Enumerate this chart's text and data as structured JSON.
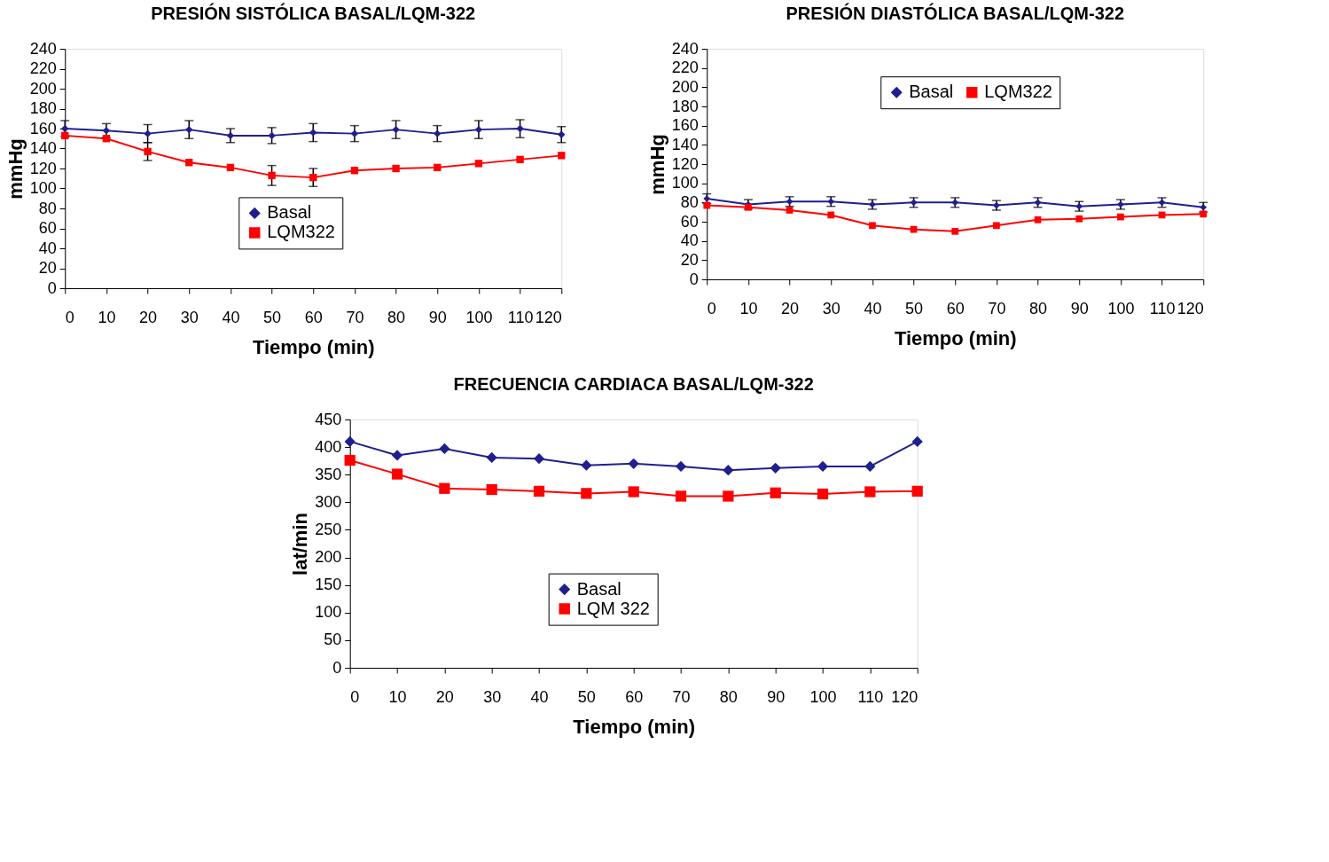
{
  "chart_data": [
    {
      "type": "line",
      "title": "PRESIÓN SISTÓLICA BASAL/LQM-322",
      "xlabel": "Tiempo (min)",
      "ylabel": "mmHg",
      "x": [
        0,
        10,
        20,
        30,
        40,
        50,
        60,
        70,
        80,
        90,
        100,
        110,
        120
      ],
      "xlim": [
        0,
        120
      ],
      "xticks": [
        0,
        10,
        20,
        30,
        40,
        50,
        60,
        70,
        80,
        90,
        100,
        110,
        120
      ],
      "ylim": [
        0,
        240
      ],
      "yticks": [
        0,
        20,
        40,
        60,
        80,
        100,
        120,
        140,
        160,
        180,
        200,
        220,
        240
      ],
      "grid": false,
      "legend": "bottom",
      "series": [
        {
          "name": "Basal",
          "color": "#1f1f8f",
          "marker": "diamond",
          "values": [
            160,
            158,
            155,
            159,
            153,
            153,
            156,
            155,
            159,
            155,
            159,
            160,
            154
          ],
          "errors": [
            8,
            7,
            9,
            9,
            7,
            8,
            9,
            8,
            9,
            8,
            9,
            9,
            8
          ]
        },
        {
          "name": "LQM322",
          "color": "#ff0000",
          "marker": "square",
          "values": [
            153,
            150,
            137,
            126,
            121,
            113,
            111,
            118,
            120,
            121,
            125,
            129,
            133
          ],
          "errors": [
            null,
            null,
            9,
            null,
            null,
            10,
            9,
            null,
            null,
            null,
            null,
            null,
            null
          ]
        }
      ]
    },
    {
      "type": "line",
      "title": "PRESIÓN DIASTÓLICA BASAL/LQM-322",
      "xlabel": "Tiempo (min)",
      "ylabel": "mmHg",
      "x": [
        0,
        10,
        20,
        30,
        40,
        50,
        60,
        70,
        80,
        90,
        100,
        110,
        120
      ],
      "xlim": [
        0,
        120
      ],
      "xticks": [
        0,
        10,
        20,
        30,
        40,
        50,
        60,
        70,
        80,
        90,
        100,
        110,
        120
      ],
      "ylim": [
        0,
        240
      ],
      "yticks": [
        0,
        20,
        40,
        60,
        80,
        100,
        120,
        140,
        160,
        180,
        200,
        220,
        240
      ],
      "grid": false,
      "legend": "top",
      "series": [
        {
          "name": "Basal",
          "color": "#1f1f8f",
          "marker": "diamond",
          "values": [
            84,
            78,
            81,
            81,
            78,
            80,
            80,
            77,
            80,
            76,
            78,
            80,
            75
          ],
          "errors": [
            5,
            5,
            5,
            5,
            5,
            5,
            5,
            5,
            5,
            5,
            5,
            5,
            5
          ]
        },
        {
          "name": "LQM322",
          "color": "#ff0000",
          "marker": "square",
          "values": [
            77,
            75,
            72,
            67,
            56,
            52,
            50,
            56,
            62,
            63,
            65,
            67,
            68
          ]
        }
      ]
    },
    {
      "type": "line",
      "title": "FRECUENCIA CARDIACA BASAL/LQM-322",
      "xlabel": "Tiempo (min)",
      "ylabel": "lat/min",
      "x": [
        0,
        10,
        20,
        30,
        40,
        50,
        60,
        70,
        80,
        90,
        100,
        110,
        120
      ],
      "xlim": [
        0,
        120
      ],
      "xticks": [
        0,
        10,
        20,
        30,
        40,
        50,
        60,
        70,
        80,
        90,
        100,
        110,
        120
      ],
      "ylim": [
        0,
        450
      ],
      "yticks": [
        0,
        50,
        100,
        150,
        200,
        250,
        300,
        350,
        400,
        450
      ],
      "grid": false,
      "legend": "bottom",
      "series": [
        {
          "name": "Basal",
          "color": "#1f1f8f",
          "marker": "diamond",
          "values": [
            410,
            385,
            397,
            381,
            379,
            367,
            370,
            365,
            358,
            362,
            365,
            365,
            410
          ]
        },
        {
          "name": "LQM 322",
          "color": "#ff0000",
          "marker": "square",
          "values": [
            376,
            351,
            325,
            323,
            320,
            316,
            319,
            311,
            311,
            317,
            315,
            319,
            320
          ]
        }
      ]
    }
  ]
}
